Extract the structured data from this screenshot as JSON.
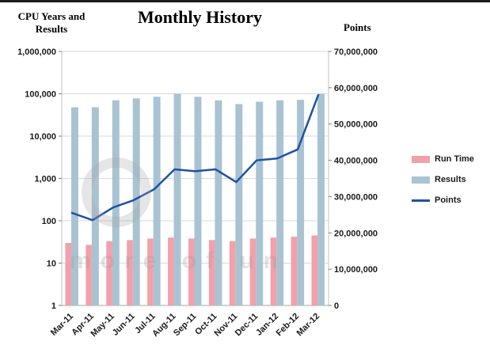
{
  "header": {
    "title": "Monthly History",
    "left_axis_line1": "CPU Years and",
    "left_axis_line2": "Results",
    "right_axis_title": "Points"
  },
  "legend": {
    "items": [
      {
        "label": "Run Time",
        "type": "bar",
        "color": "#f2a0aa"
      },
      {
        "label": "Results",
        "type": "bar",
        "color": "#a9c3d3"
      },
      {
        "label": "Points",
        "type": "line",
        "color": "#2052a3"
      }
    ]
  },
  "watermark": {
    "text": "more of un"
  },
  "chart_data": {
    "type": "combo",
    "title": "Monthly History",
    "categories": [
      "Mar-11",
      "Apr-11",
      "May-11",
      "Jun-11",
      "Jul-11",
      "Aug-11",
      "Sep-11",
      "Oct-11",
      "Nov-11",
      "Dec-11",
      "Jan-12",
      "Feb-12",
      "Mar-12"
    ],
    "series": [
      {
        "name": "Run Time",
        "type": "bar",
        "axis": "left",
        "color": "#f2a0aa",
        "values": [
          30,
          27,
          33,
          35,
          38,
          40,
          38,
          35,
          33,
          38,
          40,
          42,
          45
        ]
      },
      {
        "name": "Results",
        "type": "bar",
        "axis": "left",
        "color": "#a9c3d3",
        "values": [
          48000,
          48000,
          70000,
          78000,
          85000,
          100000,
          85000,
          70000,
          57000,
          65000,
          70000,
          72000,
          100000
        ]
      },
      {
        "name": "Points",
        "type": "line",
        "axis": "right",
        "color": "#2052a3",
        "values": [
          25500000,
          23500000,
          27000000,
          29000000,
          32000000,
          37500000,
          37000000,
          37500000,
          34000000,
          40000000,
          40500000,
          43000000,
          58000000
        ]
      }
    ],
    "left_axis": {
      "label": "CPU Years and Results",
      "scale": "log",
      "min": 1,
      "max": 1000000,
      "ticks": [
        "1,000,000",
        "100,000",
        "10,000",
        "1,000",
        "100",
        "10",
        "1"
      ]
    },
    "right_axis": {
      "label": "Points",
      "scale": "linear",
      "min": 0,
      "max": 70000000,
      "ticks": [
        "70,000,000",
        "60,000,000",
        "50,000,000",
        "40,000,000",
        "30,000,000",
        "20,000,000",
        "10,000,000",
        "0"
      ]
    },
    "grid": true,
    "legend_position": "right"
  }
}
